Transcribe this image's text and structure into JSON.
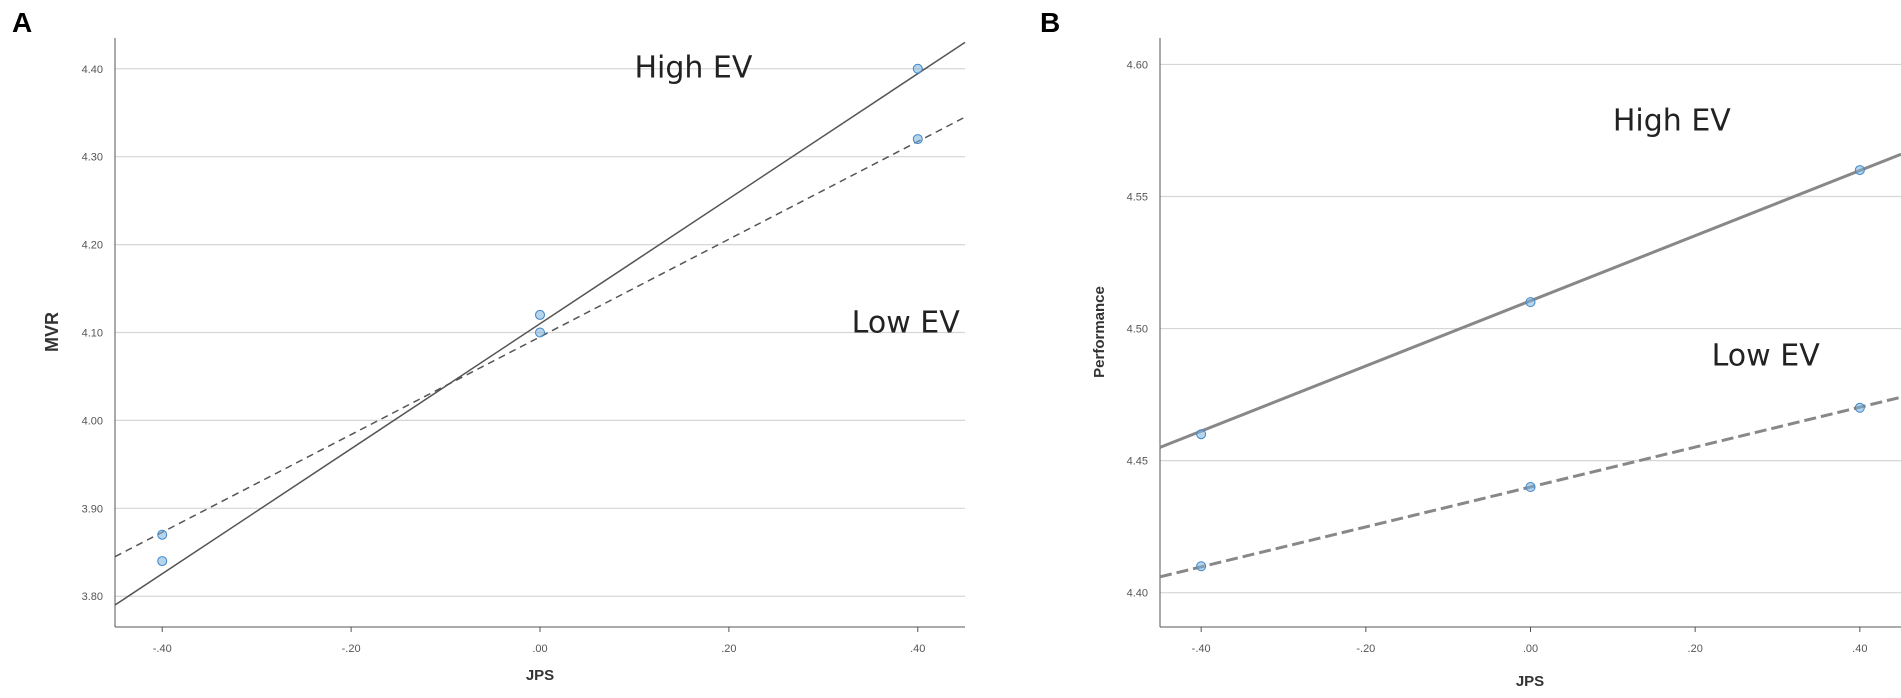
{
  "chart_data": [
    {
      "type": "line",
      "panel_label": "A",
      "xlabel": "JPS",
      "ylabel": "MVR",
      "xlim": [
        -0.45,
        0.45
      ],
      "ylim": [
        3.765,
        4.435
      ],
      "xticks": [
        -0.4,
        -0.2,
        0.0,
        0.2,
        0.4
      ],
      "xtick_labels": [
        "-.40",
        "-.20",
        ".00",
        ".20",
        ".40"
      ],
      "yticks": [
        3.8,
        3.9,
        4.0,
        4.1,
        4.2,
        4.3,
        4.4
      ],
      "ytick_labels": [
        "3.80",
        "3.90",
        "4.00",
        "4.10",
        "4.20",
        "4.30",
        "4.40"
      ],
      "grid": true,
      "series": [
        {
          "name": "High EV",
          "style": "solid",
          "x": [
            -0.4,
            0.0,
            0.4
          ],
          "y": [
            3.84,
            4.12,
            4.4
          ],
          "line_y": [
            3.79,
            4.43
          ]
        },
        {
          "name": "Low EV",
          "style": "dashed",
          "x": [
            -0.4,
            0.0,
            0.4
          ],
          "y": [
            3.87,
            4.1,
            4.32
          ],
          "line_y": [
            3.845,
            4.345
          ]
        }
      ],
      "annotations": [
        {
          "text": "High EV",
          "x": 0.1,
          "y": 4.39
        },
        {
          "text": "Low EV",
          "x": 0.33,
          "y": 4.1
        }
      ]
    },
    {
      "type": "line",
      "panel_label": "B",
      "xlabel": "JPS",
      "ylabel": "Performance",
      "xlim": [
        -0.45,
        0.45
      ],
      "ylim": [
        4.387,
        4.61
      ],
      "xticks": [
        -0.4,
        -0.2,
        0.0,
        0.2,
        0.4
      ],
      "xtick_labels": [
        "-.40",
        "-.20",
        ".00",
        ".20",
        ".40"
      ],
      "yticks": [
        4.4,
        4.45,
        4.5,
        4.55,
        4.6
      ],
      "ytick_labels": [
        "4.40",
        "4.45",
        "4.50",
        "4.55",
        "4.60"
      ],
      "grid": true,
      "series": [
        {
          "name": "High EV",
          "style": "solid",
          "x": [
            -0.4,
            0.0,
            0.4
          ],
          "y": [
            4.46,
            4.51,
            4.56
          ],
          "line_y": [
            4.455,
            4.566
          ]
        },
        {
          "name": "Low EV",
          "style": "dashed",
          "x": [
            -0.4,
            0.0,
            0.4
          ],
          "y": [
            4.41,
            4.44,
            4.47
          ],
          "line_y": [
            4.406,
            4.474
          ]
        }
      ],
      "annotations": [
        {
          "text": "High EV",
          "x": 0.1,
          "y": 4.575
        },
        {
          "text": "Low EV",
          "x": 0.22,
          "y": 4.486
        }
      ]
    }
  ],
  "colors": {
    "grid": "#d6d6d6",
    "frame": "#555555",
    "line_a": "#555555",
    "line_b": "#888888",
    "marker_fill": "#7ab3dc",
    "marker_stroke": "#3d85c6"
  }
}
